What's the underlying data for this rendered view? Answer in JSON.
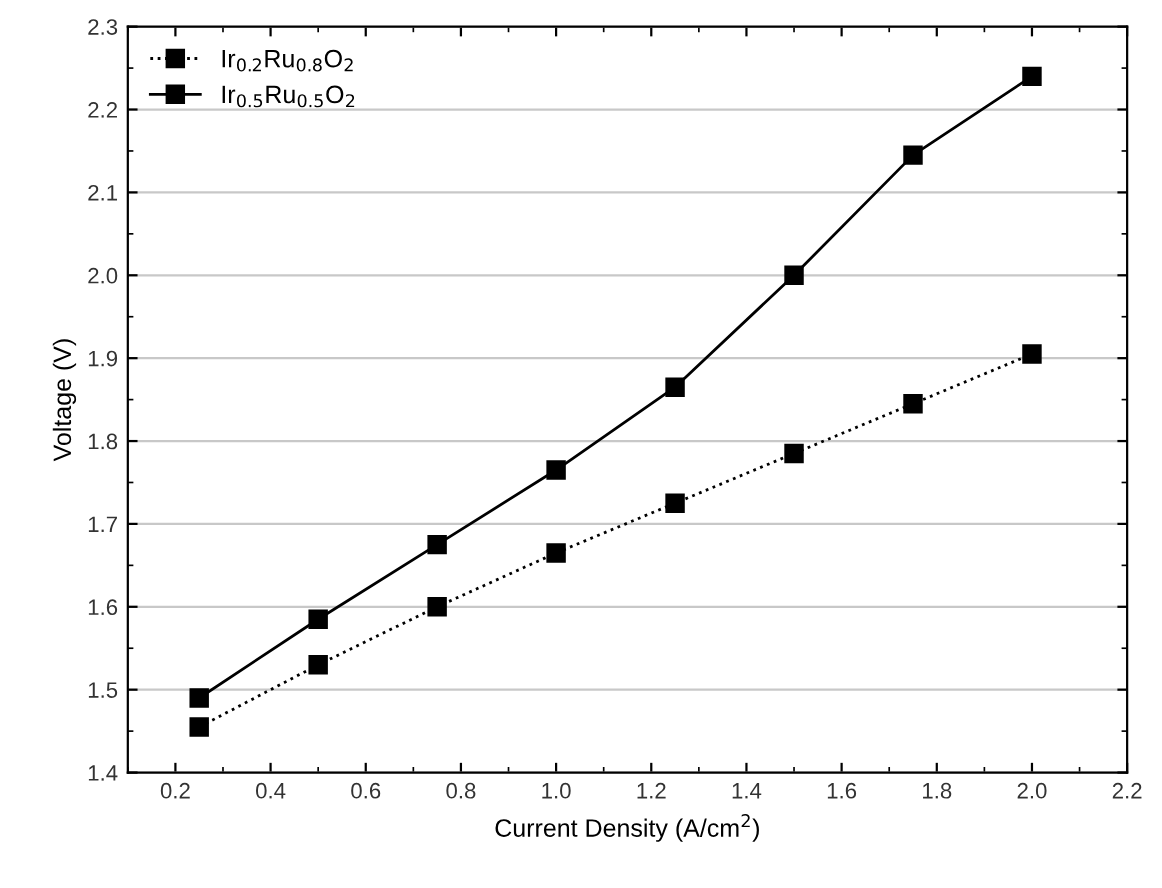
{
  "chart_data": {
    "type": "line",
    "xlabel": "Current Density (A/cm$^{2}$)",
    "ylabel": "Voltage (V)",
    "x": [
      0.25,
      0.5,
      0.75,
      1.0,
      1.25,
      1.5,
      1.75,
      2.0
    ],
    "series": [
      {
        "name": "Ir$_{0.2}$Ru$_{0.8}$O$_{2}$",
        "color": "#000000",
        "line_style": "dotted",
        "values": [
          1.455,
          1.53,
          1.6,
          1.665,
          1.725,
          1.785,
          1.845,
          1.905
        ]
      },
      {
        "name": "Ir$_{0.5}$Ru$_{0.5}$O$_{2}$",
        "color": "#000000",
        "line_style": "solid",
        "values": [
          1.49,
          1.585,
          1.675,
          1.765,
          1.865,
          2.0,
          2.145,
          2.24
        ]
      }
    ],
    "xlim": [
      0.1,
      2.2
    ],
    "xticks": [
      0.2,
      0.4,
      0.6,
      0.8,
      {
        "value": 1,
        "label": "1.0"
      },
      1.2,
      1.4,
      1.6,
      1.8,
      {
        "value": 2,
        "label": "2.0"
      },
      2.2
    ],
    "ylim": [
      1.4,
      2.3
    ],
    "yticks": [
      1.4,
      1.5,
      1.6,
      1.7,
      1.8,
      1.9,
      {
        "value": 2,
        "label": "2.0"
      },
      2.1,
      2.2,
      2.3
    ],
    "grid": "y",
    "legend": "top left",
    "marker": "square"
  }
}
